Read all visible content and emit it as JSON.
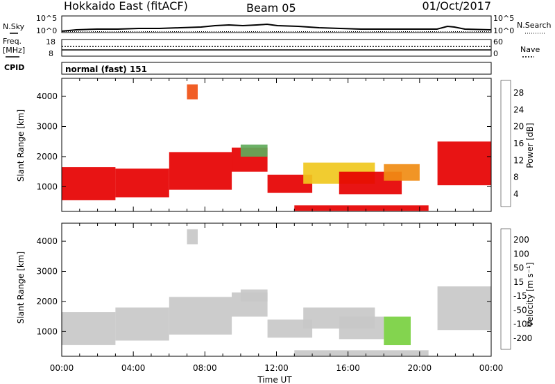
{
  "header": {
    "station": "Hokkaido East (fitACF)",
    "beam": "Beam 05",
    "date": "01/Oct/2017"
  },
  "top_panels": {
    "nsky_label": "N.Sky",
    "nsearch_label": "N.Search",
    "noise_tick_high": "10^5",
    "noise_tick_low": "10^0",
    "freq_label": "Freq.",
    "freq_unit": "[MHz]",
    "freq_tick_high": "18",
    "freq_tick_low": "8",
    "nave_label": "Nave",
    "nave_tick_high": "60",
    "nave_tick_low": "0",
    "cpid_label": "CPID",
    "cpid_text": "normal (fast) 151"
  },
  "panels": {
    "power": {
      "ylabel": "Slant Range [km]",
      "colorbar_label": "Power [dB]",
      "colorbar_ticks": [
        "28",
        "24",
        "20",
        "16",
        "12",
        "8",
        "4"
      ]
    },
    "velocity": {
      "ylabel": "Slant Range [km]",
      "colorbar_label": "Velocity [m s⁻¹]",
      "colorbar_ticks": [
        "200",
        "100",
        "50",
        "15",
        "-15",
        "-50",
        "-100",
        "-200"
      ]
    }
  },
  "xaxis": {
    "label": "Time UT",
    "ticks": [
      "00:00",
      "04:00",
      "08:00",
      "12:00",
      "16:00",
      "20:00",
      "00:00"
    ]
  },
  "colors": {
    "power_scale": [
      "#0000ff",
      "#2a5aa8",
      "#3c8c5a",
      "#5faa5a",
      "#f0c81e",
      "#f08c14",
      "#f05014",
      "#e61e0a",
      "#e60000"
    ],
    "velocity_scale": [
      "#2030c0",
      "#2a7a44",
      "#44aa44",
      "#78d040",
      "#c8c8c8",
      "#c8c8c8",
      "#f0b428",
      "#f08c14",
      "#f05014",
      "#e60000"
    ]
  },
  "chart_data": [
    {
      "type": "heatmap",
      "panel": "power",
      "xlabel": "Time UT",
      "ylabel": "Slant Range [km]",
      "xlim_hours": [
        0,
        24
      ],
      "ylim": [
        180,
        4600
      ],
      "yticks": [
        1000,
        2000,
        3000,
        4000
      ],
      "colorbar_label": "Power [dB]",
      "colorbar_range": [
        0,
        30
      ],
      "regions": [
        {
          "t0": 0.0,
          "t1": 3.0,
          "r0": 550,
          "r1": 1650,
          "value": 28
        },
        {
          "t0": 3.0,
          "t1": 6.0,
          "r0": 650,
          "r1": 1600,
          "value": 28
        },
        {
          "t0": 6.0,
          "t1": 9.5,
          "r0": 900,
          "r1": 2150,
          "value": 28
        },
        {
          "t0": 9.5,
          "t1": 11.5,
          "r0": 1500,
          "r1": 2300,
          "value": 28
        },
        {
          "t0": 10.0,
          "t1": 11.5,
          "r0": 2000,
          "r1": 2400,
          "value": 12
        },
        {
          "t0": 11.5,
          "t1": 14.0,
          "r0": 800,
          "r1": 1400,
          "value": 28
        },
        {
          "t0": 13.5,
          "t1": 17.5,
          "r0": 1100,
          "r1": 1800,
          "value": 14
        },
        {
          "t0": 15.5,
          "t1": 19.0,
          "r0": 750,
          "r1": 1500,
          "value": 27
        },
        {
          "t0": 18.0,
          "t1": 20.0,
          "r0": 1200,
          "r1": 1750,
          "value": 17
        },
        {
          "t0": 21.0,
          "t1": 24.0,
          "r0": 1050,
          "r1": 2500,
          "value": 28
        },
        {
          "t0": 13.0,
          "t1": 20.5,
          "r0": 200,
          "r1": 380,
          "value": 27
        },
        {
          "t0": 7.0,
          "t1": 7.6,
          "r0": 3900,
          "r1": 4400,
          "value": 22
        }
      ]
    },
    {
      "type": "heatmap",
      "panel": "velocity",
      "xlabel": "Time UT",
      "ylabel": "Slant Range [km]",
      "xlim_hours": [
        0,
        24
      ],
      "ylim": [
        180,
        4600
      ],
      "yticks": [
        1000,
        2000,
        3000,
        4000
      ],
      "colorbar_label": "Velocity [m s⁻¹]",
      "colorbar_range": [
        -250,
        250
      ],
      "regions": [
        {
          "t0": 0.0,
          "t1": 3.0,
          "r0": 550,
          "r1": 1650,
          "value": 0
        },
        {
          "t0": 3.0,
          "t1": 6.0,
          "r0": 700,
          "r1": 1800,
          "value": -30
        },
        {
          "t0": 6.0,
          "t1": 9.5,
          "r0": 900,
          "r1": 2150,
          "value": 0
        },
        {
          "t0": 9.5,
          "t1": 11.5,
          "r0": 1500,
          "r1": 2300,
          "value": 0
        },
        {
          "t0": 10.0,
          "t1": 11.5,
          "r0": 2000,
          "r1": 2400,
          "value": 0
        },
        {
          "t0": 11.5,
          "t1": 14.0,
          "r0": 800,
          "r1": 1400,
          "value": 0
        },
        {
          "t0": 13.5,
          "t1": 17.5,
          "r0": 1100,
          "r1": 1800,
          "value": 30
        },
        {
          "t0": 15.5,
          "t1": 18.0,
          "r0": 750,
          "r1": 1500,
          "value": 30
        },
        {
          "t0": 18.0,
          "t1": 19.5,
          "r0": 550,
          "r1": 1500,
          "value": -60
        },
        {
          "t0": 21.0,
          "t1": 24.0,
          "r0": 1050,
          "r1": 2500,
          "value": 0
        },
        {
          "t0": 13.0,
          "t1": 20.5,
          "r0": 200,
          "r1": 380,
          "value": 0
        },
        {
          "t0": 7.0,
          "t1": 7.6,
          "r0": 3900,
          "r1": 4400,
          "value": 0
        }
      ]
    }
  ]
}
